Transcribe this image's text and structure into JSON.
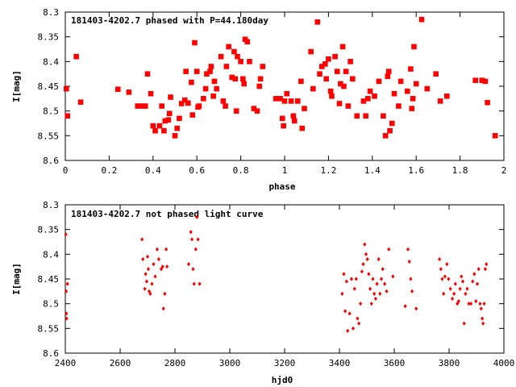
{
  "chart_data": [
    {
      "type": "scatter",
      "title": "181403-4202.7 phased with P=44.180day",
      "xlabel": "phase",
      "ylabel": "I[mag]",
      "xlim": [
        0,
        2
      ],
      "ylim": [
        8.6,
        8.3
      ],
      "y_inverted": true,
      "xticks": [
        "0",
        "0.2",
        "0.4",
        "0.6",
        "0.8",
        "1",
        "1.2",
        "1.4",
        "1.6",
        "1.8",
        "2"
      ],
      "yticks": [
        "8.3",
        "8.35",
        "8.4",
        "8.45",
        "8.5",
        "8.55",
        "8.6"
      ],
      "marker_color": "#ff0000",
      "marker": "filled-square-large",
      "points": [
        [
          0.005,
          8.455
        ],
        [
          0.01,
          8.51
        ],
        [
          0.05,
          8.39
        ],
        [
          0.07,
          8.482
        ],
        [
          0.24,
          8.456
        ],
        [
          0.29,
          8.462
        ],
        [
          0.33,
          8.49
        ],
        [
          0.35,
          8.49
        ],
        [
          0.365,
          8.49
        ],
        [
          0.375,
          8.425
        ],
        [
          0.39,
          8.465
        ],
        [
          0.4,
          8.53
        ],
        [
          0.41,
          8.54
        ],
        [
          0.43,
          8.53
        ],
        [
          0.44,
          8.49
        ],
        [
          0.45,
          8.54
        ],
        [
          0.455,
          8.52
        ],
        [
          0.47,
          8.518
        ],
        [
          0.475,
          8.505
        ],
        [
          0.48,
          8.472
        ],
        [
          0.5,
          8.55
        ],
        [
          0.51,
          8.535
        ],
        [
          0.52,
          8.515
        ],
        [
          0.53,
          8.485
        ],
        [
          0.545,
          8.478
        ],
        [
          0.55,
          8.42
        ],
        [
          0.56,
          8.484
        ],
        [
          0.575,
          8.442
        ],
        [
          0.58,
          8.508
        ],
        [
          0.59,
          8.362
        ],
        [
          0.6,
          8.42
        ],
        [
          0.605,
          8.492
        ],
        [
          0.61,
          8.49
        ],
        [
          0.63,
          8.475
        ],
        [
          0.64,
          8.455
        ],
        [
          0.645,
          8.425
        ],
        [
          0.66,
          8.42
        ],
        [
          0.665,
          8.41
        ],
        [
          0.675,
          8.47
        ],
        [
          0.68,
          8.44
        ],
        [
          0.69,
          8.455
        ],
        [
          0.71,
          8.39
        ],
        [
          0.72,
          8.48
        ],
        [
          0.73,
          8.49
        ],
        [
          0.735,
          8.41
        ],
        [
          0.745,
          8.37
        ],
        [
          0.76,
          8.432
        ],
        [
          0.77,
          8.38
        ],
        [
          0.775,
          8.435
        ],
        [
          0.78,
          8.5
        ],
        [
          0.785,
          8.39
        ],
        [
          0.8,
          8.4
        ],
        [
          0.81,
          8.435
        ],
        [
          0.815,
          8.445
        ],
        [
          0.82,
          8.355
        ],
        [
          0.83,
          8.36
        ],
        [
          0.84,
          8.4
        ],
        [
          0.86,
          8.495
        ],
        [
          0.875,
          8.5
        ],
        [
          0.885,
          8.45
        ],
        [
          0.89,
          8.435
        ],
        [
          0.9,
          8.41
        ],
        [
          0.96,
          8.475
        ],
        [
          0.98,
          8.475
        ],
        [
          0.99,
          8.515
        ],
        [
          0.995,
          8.53
        ],
        [
          1.0,
          8.48
        ],
        [
          1.01,
          8.465
        ],
        [
          1.03,
          8.48
        ],
        [
          1.04,
          8.51
        ],
        [
          1.045,
          8.52
        ],
        [
          1.06,
          8.48
        ],
        [
          1.075,
          8.44
        ],
        [
          1.08,
          8.535
        ],
        [
          1.09,
          8.495
        ],
        [
          1.12,
          8.38
        ],
        [
          1.13,
          8.455
        ],
        [
          1.15,
          8.32
        ],
        [
          1.16,
          8.425
        ],
        [
          1.17,
          8.41
        ],
        [
          1.185,
          8.405
        ],
        [
          1.19,
          8.435
        ],
        [
          1.2,
          8.395
        ],
        [
          1.21,
          8.46
        ],
        [
          1.215,
          8.47
        ],
        [
          1.23,
          8.39
        ],
        [
          1.24,
          8.42
        ],
        [
          1.25,
          8.485
        ],
        [
          1.255,
          8.445
        ],
        [
          1.265,
          8.37
        ],
        [
          1.27,
          8.45
        ],
        [
          1.28,
          8.42
        ],
        [
          1.29,
          8.49
        ],
        [
          1.3,
          8.4
        ],
        [
          1.31,
          8.435
        ],
        [
          1.33,
          8.51
        ],
        [
          1.36,
          8.48
        ],
        [
          1.37,
          8.51
        ],
        [
          1.38,
          8.475
        ],
        [
          1.39,
          8.46
        ],
        [
          1.41,
          8.47
        ],
        [
          1.43,
          8.44
        ],
        [
          1.45,
          8.51
        ],
        [
          1.46,
          8.55
        ],
        [
          1.47,
          8.43
        ],
        [
          1.475,
          8.42
        ],
        [
          1.48,
          8.54
        ],
        [
          1.49,
          8.525
        ],
        [
          1.5,
          8.465
        ],
        [
          1.52,
          8.49
        ],
        [
          1.53,
          8.44
        ],
        [
          1.56,
          8.46
        ],
        [
          1.575,
          8.415
        ],
        [
          1.58,
          8.495
        ],
        [
          1.585,
          8.475
        ],
        [
          1.59,
          8.37
        ],
        [
          1.6,
          8.445
        ],
        [
          1.625,
          8.315
        ],
        [
          1.65,
          8.455
        ],
        [
          1.69,
          8.425
        ],
        [
          1.71,
          8.48
        ],
        [
          1.74,
          8.47
        ],
        [
          1.87,
          8.438
        ],
        [
          1.9,
          8.438
        ],
        [
          1.915,
          8.44
        ],
        [
          1.925,
          8.483
        ],
        [
          1.96,
          8.55
        ]
      ]
    },
    {
      "type": "scatter",
      "title": "181403-4202.7 not phased light curve",
      "xlabel": "hjd0",
      "ylabel": "I[mag]",
      "xlim": [
        2400,
        4000
      ],
      "ylim": [
        8.6,
        8.3
      ],
      "y_inverted": true,
      "xticks": [
        "2400",
        "2600",
        "2800",
        "3000",
        "3200",
        "3400",
        "3600",
        "3800",
        "4000"
      ],
      "yticks": [
        "8.3",
        "8.35",
        "8.4",
        "8.45",
        "8.5",
        "8.55",
        "8.6"
      ],
      "marker_color": "#ff0000",
      "marker": "filled-diamond-small",
      "points": [
        [
          2402,
          8.36
        ],
        [
          2403,
          8.475
        ],
        [
          2404,
          8.52
        ],
        [
          2405,
          8.53
        ],
        [
          2408,
          8.46
        ],
        [
          2680,
          8.37
        ],
        [
          2683,
          8.41
        ],
        [
          2690,
          8.47
        ],
        [
          2693,
          8.44
        ],
        [
          2697,
          8.455
        ],
        [
          2700,
          8.405
        ],
        [
          2703,
          8.43
        ],
        [
          2706,
          8.475
        ],
        [
          2710,
          8.48
        ],
        [
          2716,
          8.46
        ],
        [
          2722,
          8.42
        ],
        [
          2728,
          8.445
        ],
        [
          2735,
          8.39
        ],
        [
          2741,
          8.41
        ],
        [
          2750,
          8.43
        ],
        [
          2755,
          8.425
        ],
        [
          2758,
          8.51
        ],
        [
          2763,
          8.48
        ],
        [
          2768,
          8.39
        ],
        [
          2771,
          8.425
        ],
        [
          2850,
          8.42
        ],
        [
          2858,
          8.355
        ],
        [
          2862,
          8.37
        ],
        [
          2866,
          8.43
        ],
        [
          2870,
          8.46
        ],
        [
          2876,
          8.39
        ],
        [
          2880,
          8.325
        ],
        [
          2884,
          8.37
        ],
        [
          2890,
          8.46
        ],
        [
          3410,
          8.48
        ],
        [
          3416,
          8.44
        ],
        [
          3421,
          8.515
        ],
        [
          3426,
          8.455
        ],
        [
          3430,
          8.555
        ],
        [
          3437,
          8.52
        ],
        [
          3444,
          8.45
        ],
        [
          3450,
          8.55
        ],
        [
          3455,
          8.47
        ],
        [
          3461,
          8.45
        ],
        [
          3466,
          8.53
        ],
        [
          3471,
          8.54
        ],
        [
          3477,
          8.5
        ],
        [
          3482,
          8.435
        ],
        [
          3487,
          8.42
        ],
        [
          3492,
          8.38
        ],
        [
          3497,
          8.4
        ],
        [
          3502,
          8.41
        ],
        [
          3507,
          8.44
        ],
        [
          3512,
          8.47
        ],
        [
          3517,
          8.5
        ],
        [
          3522,
          8.45
        ],
        [
          3527,
          8.48
        ],
        [
          3532,
          8.49
        ],
        [
          3537,
          8.46
        ],
        [
          3543,
          8.41
        ],
        [
          3548,
          8.48
        ],
        [
          3553,
          8.45
        ],
        [
          3558,
          8.43
        ],
        [
          3565,
          8.46
        ],
        [
          3572,
          8.475
        ],
        [
          3580,
          8.39
        ],
        [
          3595,
          8.445
        ],
        [
          3640,
          8.505
        ],
        [
          3650,
          8.39
        ],
        [
          3655,
          8.415
        ],
        [
          3660,
          8.45
        ],
        [
          3665,
          8.475
        ],
        [
          3680,
          8.51
        ],
        [
          3765,
          8.41
        ],
        [
          3770,
          8.43
        ],
        [
          3775,
          8.45
        ],
        [
          3780,
          8.48
        ],
        [
          3785,
          8.445
        ],
        [
          3792,
          8.42
        ],
        [
          3798,
          8.45
        ],
        [
          3805,
          8.47
        ],
        [
          3812,
          8.49
        ],
        [
          3818,
          8.48
        ],
        [
          3823,
          8.46
        ],
        [
          3830,
          8.5
        ],
        [
          3835,
          8.495
        ],
        [
          3840,
          8.47
        ],
        [
          3845,
          8.445
        ],
        [
          3850,
          8.455
        ],
        [
          3855,
          8.54
        ],
        [
          3860,
          8.48
        ],
        [
          3866,
          8.47
        ],
        [
          3872,
          8.5
        ],
        [
          3880,
          8.5
        ],
        [
          3886,
          8.455
        ],
        [
          3892,
          8.44
        ],
        [
          3898,
          8.495
        ],
        [
          3903,
          8.46
        ],
        [
          3908,
          8.43
        ],
        [
          3913,
          8.5
        ],
        [
          3917,
          8.51
        ],
        [
          3921,
          8.53
        ],
        [
          3924,
          8.54
        ],
        [
          3928,
          8.5
        ],
        [
          3932,
          8.43
        ],
        [
          3936,
          8.42
        ]
      ]
    }
  ]
}
